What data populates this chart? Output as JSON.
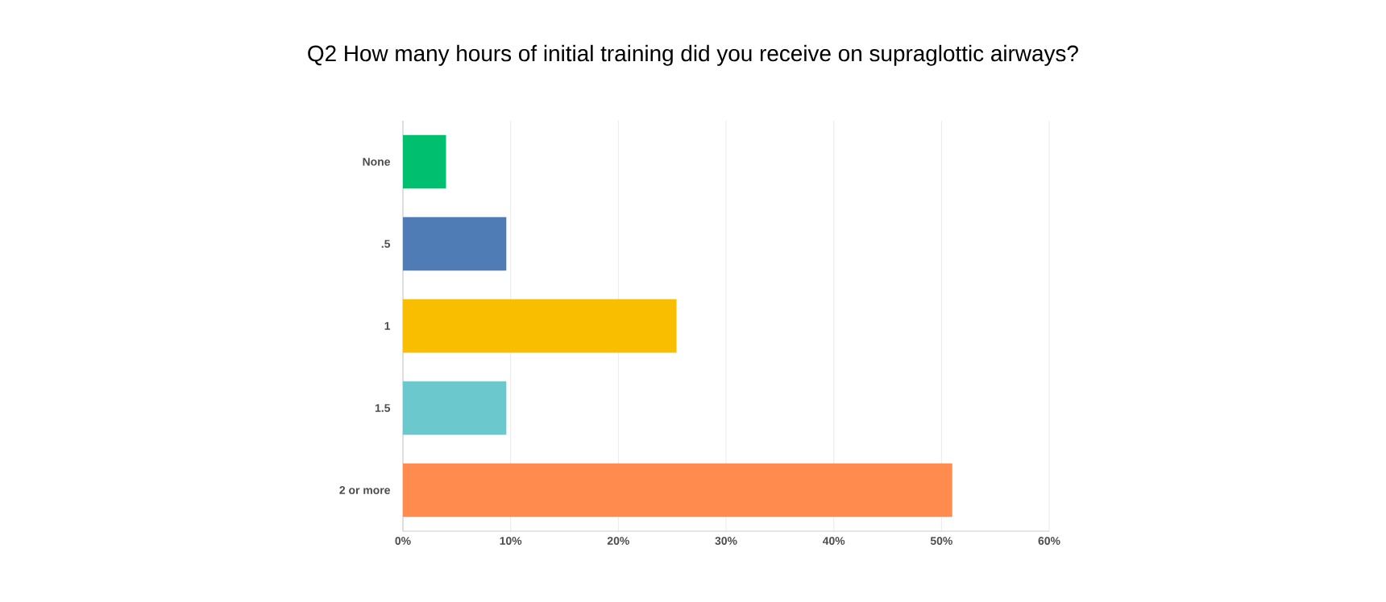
{
  "chart_data": {
    "type": "bar",
    "orientation": "horizontal",
    "title": "Q2 How many hours of initial training did you receive on supraglottic airways?",
    "categories": [
      "None",
      ".5",
      "1",
      "1.5",
      "2 or more"
    ],
    "values": [
      4.0,
      9.6,
      25.4,
      9.6,
      51.0
    ],
    "colors": [
      "#00bf6f",
      "#507cb6",
      "#f9be00",
      "#6bc8cd",
      "#ff8b4f"
    ],
    "xlim": [
      0,
      60
    ],
    "xticks": [
      {
        "value": 0,
        "label": "0%"
      },
      {
        "value": 10,
        "label": "10%"
      },
      {
        "value": 20,
        "label": "20%"
      },
      {
        "value": 30,
        "label": "30%"
      },
      {
        "value": 40,
        "label": "40%"
      },
      {
        "value": 50,
        "label": "50%"
      },
      {
        "value": 60,
        "label": "60%"
      }
    ],
    "grid": "x"
  }
}
